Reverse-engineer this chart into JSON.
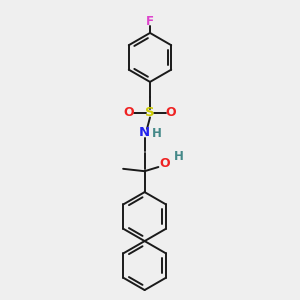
{
  "bg_color": "#efefef",
  "bond_color": "#1a1a1a",
  "atom_colors": {
    "F": "#dd44cc",
    "S": "#cccc00",
    "O": "#ee2222",
    "N": "#2222ee",
    "H": "#448888",
    "C": "#1a1a1a"
  },
  "figsize": [
    3.0,
    3.0
  ],
  "dpi": 100
}
